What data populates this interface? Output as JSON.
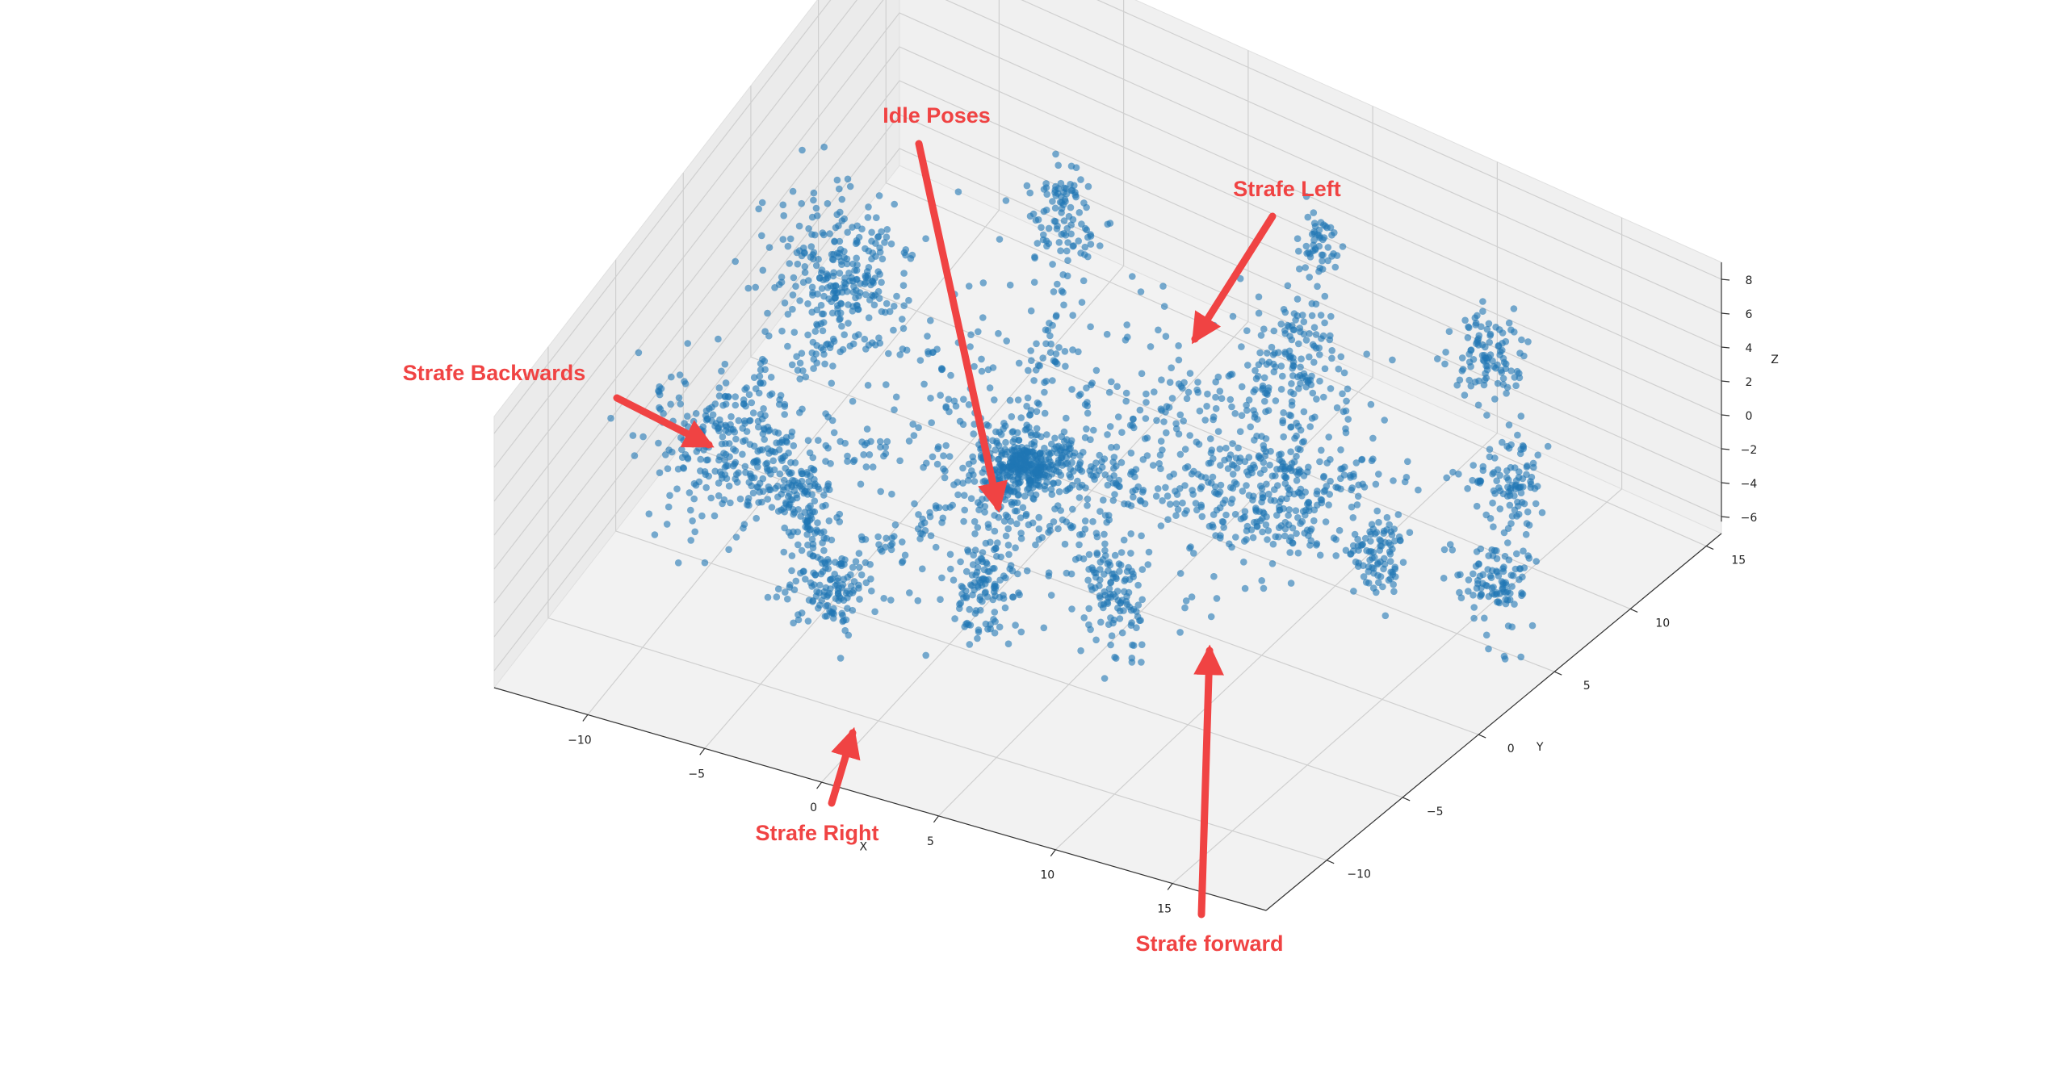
{
  "chart_data": {
    "type": "scatter",
    "projection": "3d",
    "xlabel": "X",
    "ylabel": "Y",
    "zlabel": "Z",
    "xlim": [
      -14,
      19
    ],
    "ylim": [
      -14,
      16
    ],
    "zlim": [
      -7,
      9
    ],
    "x_ticks": [
      "−10",
      "−5",
      "0",
      "5",
      "10",
      "15"
    ],
    "y_ticks": [
      "−10",
      "−5",
      "0",
      "5",
      "10",
      "15"
    ],
    "z_ticks": [
      "−6",
      "−4",
      "−2",
      "0",
      "2",
      "4",
      "6",
      "8"
    ],
    "grid": true,
    "point_color": "#1f77b4",
    "annotation_color": "#f04343",
    "clusters": [
      {
        "x": 0,
        "y": 0,
        "z": -1,
        "spread": [
          0.8,
          0.8,
          0.5
        ],
        "count": 260
      },
      {
        "x": -10,
        "y": 4,
        "z": 1,
        "spread": [
          1.3,
          1.3,
          2.2
        ],
        "count": 260
      },
      {
        "x": -10,
        "y": -4,
        "z": -1,
        "spread": [
          1.3,
          1.3,
          2.0
        ],
        "count": 260
      },
      {
        "x": 9,
        "y": 3,
        "z": 0,
        "spread": [
          1.4,
          1.4,
          2.2
        ],
        "count": 240
      },
      {
        "x": 6,
        "y": 9,
        "z": 1,
        "spread": [
          0.9,
          0.9,
          1.6
        ],
        "count": 110
      },
      {
        "x": -2,
        "y": -10,
        "z": 0,
        "spread": [
          0.7,
          0.7,
          1.2
        ],
        "count": 110
      },
      {
        "x": 7,
        "y": -5,
        "z": -1,
        "spread": [
          0.6,
          0.6,
          1.4
        ],
        "count": 90
      },
      {
        "x": 2,
        "y": -6,
        "z": -2,
        "spread": [
          0.6,
          0.6,
          1.5
        ],
        "count": 90
      },
      {
        "x": -4,
        "y": 10,
        "z": 2,
        "spread": [
          0.6,
          0.6,
          1.6
        ],
        "count": 90
      },
      {
        "x": 13,
        "y": 3,
        "z": -2,
        "spread": [
          0.5,
          0.5,
          1.3
        ],
        "count": 80
      },
      {
        "x": 11,
        "y": 14,
        "z": 0,
        "spread": [
          0.6,
          0.6,
          1.2
        ],
        "count": 90
      },
      {
        "x": 16,
        "y": 7,
        "z": 1,
        "spread": [
          0.6,
          0.6,
          1.4
        ],
        "count": 90
      },
      {
        "x": 18,
        "y": 3,
        "z": -1,
        "spread": [
          0.6,
          0.6,
          1.4
        ],
        "count": 90
      },
      {
        "x": 4,
        "y": 14,
        "z": 2,
        "spread": [
          0.4,
          0.4,
          0.8
        ],
        "count": 50
      },
      {
        "x": -6,
        "y": -6,
        "z": 0,
        "spread": [
          0.6,
          0.6,
          1.0
        ],
        "count": 70
      },
      {
        "x": -4,
        "y": -8,
        "z": 1,
        "spread": [
          0.5,
          0.5,
          0.8
        ],
        "count": 50
      }
    ],
    "annotations": [
      {
        "text": "Idle Poses",
        "target": [
          0,
          0,
          -1
        ]
      },
      {
        "text": "Strafe Left",
        "target": [
          4,
          14,
          2
        ]
      },
      {
        "text": "Strafe Backwards",
        "target": [
          -10,
          4,
          1
        ]
      },
      {
        "text": "Strafe Right",
        "target": [
          -4,
          -8,
          1
        ]
      },
      {
        "text": "Strafe forward",
        "target": [
          9,
          3,
          0
        ]
      }
    ]
  }
}
